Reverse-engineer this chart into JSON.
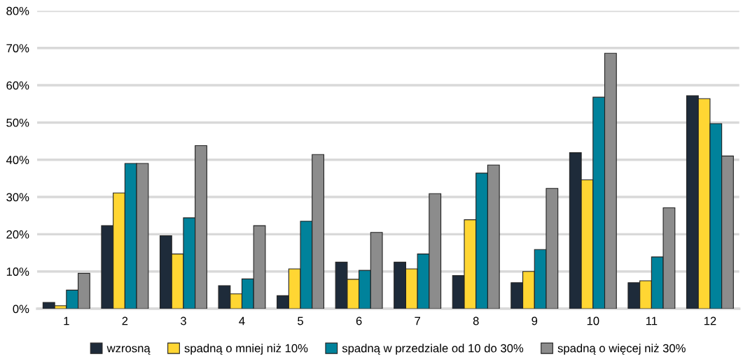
{
  "chart_data": {
    "type": "bar",
    "categories": [
      "1",
      "2",
      "3",
      "4",
      "5",
      "6",
      "7",
      "8",
      "9",
      "10",
      "11",
      "12"
    ],
    "series": [
      {
        "name": "wzrosną",
        "color": "#1e2b3a",
        "values": [
          1.7,
          22.3,
          19.6,
          6.2,
          3.5,
          12.5,
          12.5,
          8.9,
          7.0,
          41.9,
          7.0,
          57.2
        ]
      },
      {
        "name": "spadną o mniej niż 10%",
        "color": "#ffd633",
        "values": [
          0.8,
          31.1,
          14.7,
          4.0,
          10.7,
          7.9,
          10.7,
          23.9,
          10.0,
          34.6,
          7.5,
          56.4
        ]
      },
      {
        "name": "spadną w przedziale od 10 do 30%",
        "color": "#00829b",
        "values": [
          5.0,
          39.0,
          24.4,
          8.0,
          23.5,
          10.3,
          14.7,
          36.4,
          15.9,
          56.8,
          13.9,
          49.7
        ]
      },
      {
        "name": "spadną o więcej niż 30%",
        "color": "#8c8c8c",
        "values": [
          9.5,
          39.0,
          43.8,
          22.3,
          41.4,
          20.5,
          30.9,
          38.6,
          32.3,
          68.6,
          27.1,
          41.0
        ]
      }
    ],
    "ylim": [
      0,
      80
    ],
    "yticks": [
      {
        "value": 0,
        "label": "0%"
      },
      {
        "value": 10,
        "label": "10%"
      },
      {
        "value": 20,
        "label": "20%"
      },
      {
        "value": 30,
        "label": "30%"
      },
      {
        "value": 40,
        "label": "40%"
      },
      {
        "value": 50,
        "label": "50%"
      },
      {
        "value": 60,
        "label": "60%"
      },
      {
        "value": 70,
        "label": "70%"
      },
      {
        "value": 80,
        "label": "80%"
      }
    ],
    "grid": "y",
    "legend": "bottom"
  }
}
